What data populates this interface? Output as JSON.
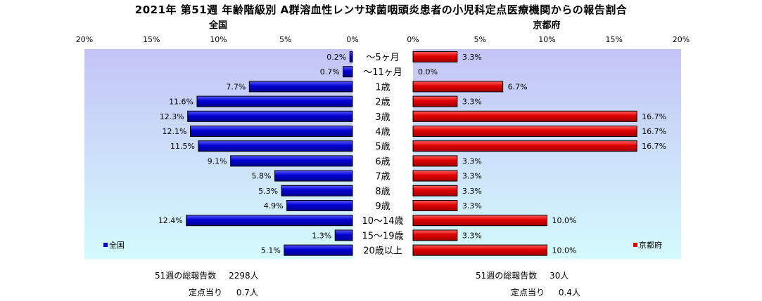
{
  "title": "2021年 第51週 年齢階級別 A群溶血性レンサ球菌咽頭炎患者の小児科定点医療機関からの報告割合",
  "chart_data": [
    {
      "type": "bar",
      "orientation": "horizontal",
      "direction": "right-to-left",
      "title": "全国",
      "series": [
        {
          "name": "全国",
          "values": [
            0.2,
            0.7,
            7.7,
            11.6,
            12.3,
            12.1,
            11.5,
            9.1,
            5.8,
            5.3,
            4.9,
            12.4,
            1.3,
            5.1
          ]
        }
      ],
      "value_labels": [
        "0.2%",
        "0.7%",
        "7.7%",
        "11.6%",
        "12.3%",
        "12.1%",
        "11.5%",
        "9.1%",
        "5.8%",
        "5.3%",
        "4.9%",
        "12.4%",
        "1.3%",
        "5.1%"
      ],
      "xlim": [
        0,
        20
      ],
      "xticks": [
        "20%",
        "15%",
        "10%",
        "5%",
        "0%"
      ],
      "legend": "bottom-left",
      "color": "#0000cc"
    },
    {
      "type": "bar",
      "orientation": "horizontal",
      "direction": "left-to-right",
      "title": "京都府",
      "series": [
        {
          "name": "京都府",
          "values": [
            3.3,
            0.0,
            6.7,
            3.3,
            16.7,
            16.7,
            16.7,
            3.3,
            3.3,
            3.3,
            3.3,
            10.0,
            3.3,
            10.0
          ]
        }
      ],
      "value_labels": [
        "3.3%",
        "0.0%",
        "6.7%",
        "3.3%",
        "16.7%",
        "16.7%",
        "16.7%",
        "3.3%",
        "3.3%",
        "3.3%",
        "3.3%",
        "10.0%",
        "3.3%",
        "10.0%"
      ],
      "xlim": [
        0,
        20
      ],
      "xticks": [
        "0%",
        "5%",
        "10%",
        "15%",
        "20%"
      ],
      "legend": "bottom-right",
      "color": "#e00000"
    }
  ],
  "categories": [
    "〜5ヶ月",
    "〜11ヶ月",
    "1歳",
    "2歳",
    "3歳",
    "4歳",
    "5歳",
    "6歳",
    "7歳",
    "8歳",
    "9歳",
    "10〜14歳",
    "15〜19歳",
    "20歳以上"
  ],
  "summary": {
    "left": {
      "total_label": "51週の総報告数",
      "total_value": "2298人",
      "per_label": "定点当り",
      "per_value": "0.7人"
    },
    "right": {
      "total_label": "51週の総報告数",
      "total_value": "30人",
      "per_label": "定点当り",
      "per_value": "0.4人"
    }
  },
  "colors": {
    "plot_top": "#c4c4f6",
    "plot_bottom": "#d4fbfd",
    "left_bar": "#0000cc",
    "right_bar": "#e00000"
  }
}
